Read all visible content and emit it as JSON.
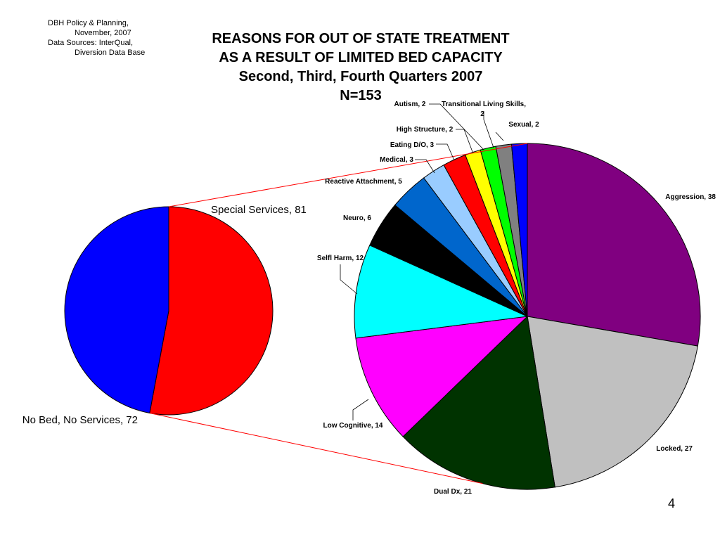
{
  "source": {
    "line1": "DBH Policy & Planning,",
    "line2": "November, 2007",
    "line3": "Data Sources: InterQual,",
    "line4": "Diversion Data Base"
  },
  "title": {
    "line1": "REASONS FOR OUT OF STATE TREATMENT",
    "line2": "AS A RESULT OF LIMITED BED CAPACITY",
    "line3": "Second, Third, Fourth Quarters 2007",
    "line4": "N=153"
  },
  "page_number": "4",
  "chart_data": [
    {
      "type": "pie",
      "series": [
        {
          "label": "Special Services, 81",
          "value": 81,
          "color": "#ff0000"
        },
        {
          "label": "No Bed, No Services, 72",
          "value": 72,
          "color": "#0000ff"
        }
      ]
    },
    {
      "type": "pie",
      "series": [
        {
          "label": "Aggression, 38",
          "value": 38,
          "color": "#800080"
        },
        {
          "label": "Locked, 27",
          "value": 27,
          "color": "#c0c0c0"
        },
        {
          "label": "Dual Dx, 21",
          "value": 21,
          "color": "#003300"
        },
        {
          "label": "Low Cognitive, 14",
          "value": 14,
          "color": "#ff00ff"
        },
        {
          "label": "Selfl Harm, 12",
          "value": 12,
          "color": "#00ffff"
        },
        {
          "label": "Neuro, 6",
          "value": 6,
          "color": "#000000"
        },
        {
          "label": "Reactive Attachment, 5",
          "value": 5,
          "color": "#0066cc"
        },
        {
          "label": "Medical, 3",
          "value": 3,
          "color": "#99ccff"
        },
        {
          "label": "Eating D/O, 3",
          "value": 3,
          "color": "#ff0000"
        },
        {
          "label": "High Structure, 2",
          "value": 2,
          "color": "#ffff00"
        },
        {
          "label": "Autism, 2",
          "value": 2,
          "color": "#00ff00"
        },
        {
          "label": "Transitional Living Skills,",
          "label2": "2",
          "value": 2,
          "color": "#808080"
        },
        {
          "label": "Sexual, 2",
          "value": 2,
          "color": "#0000ff"
        }
      ]
    }
  ]
}
